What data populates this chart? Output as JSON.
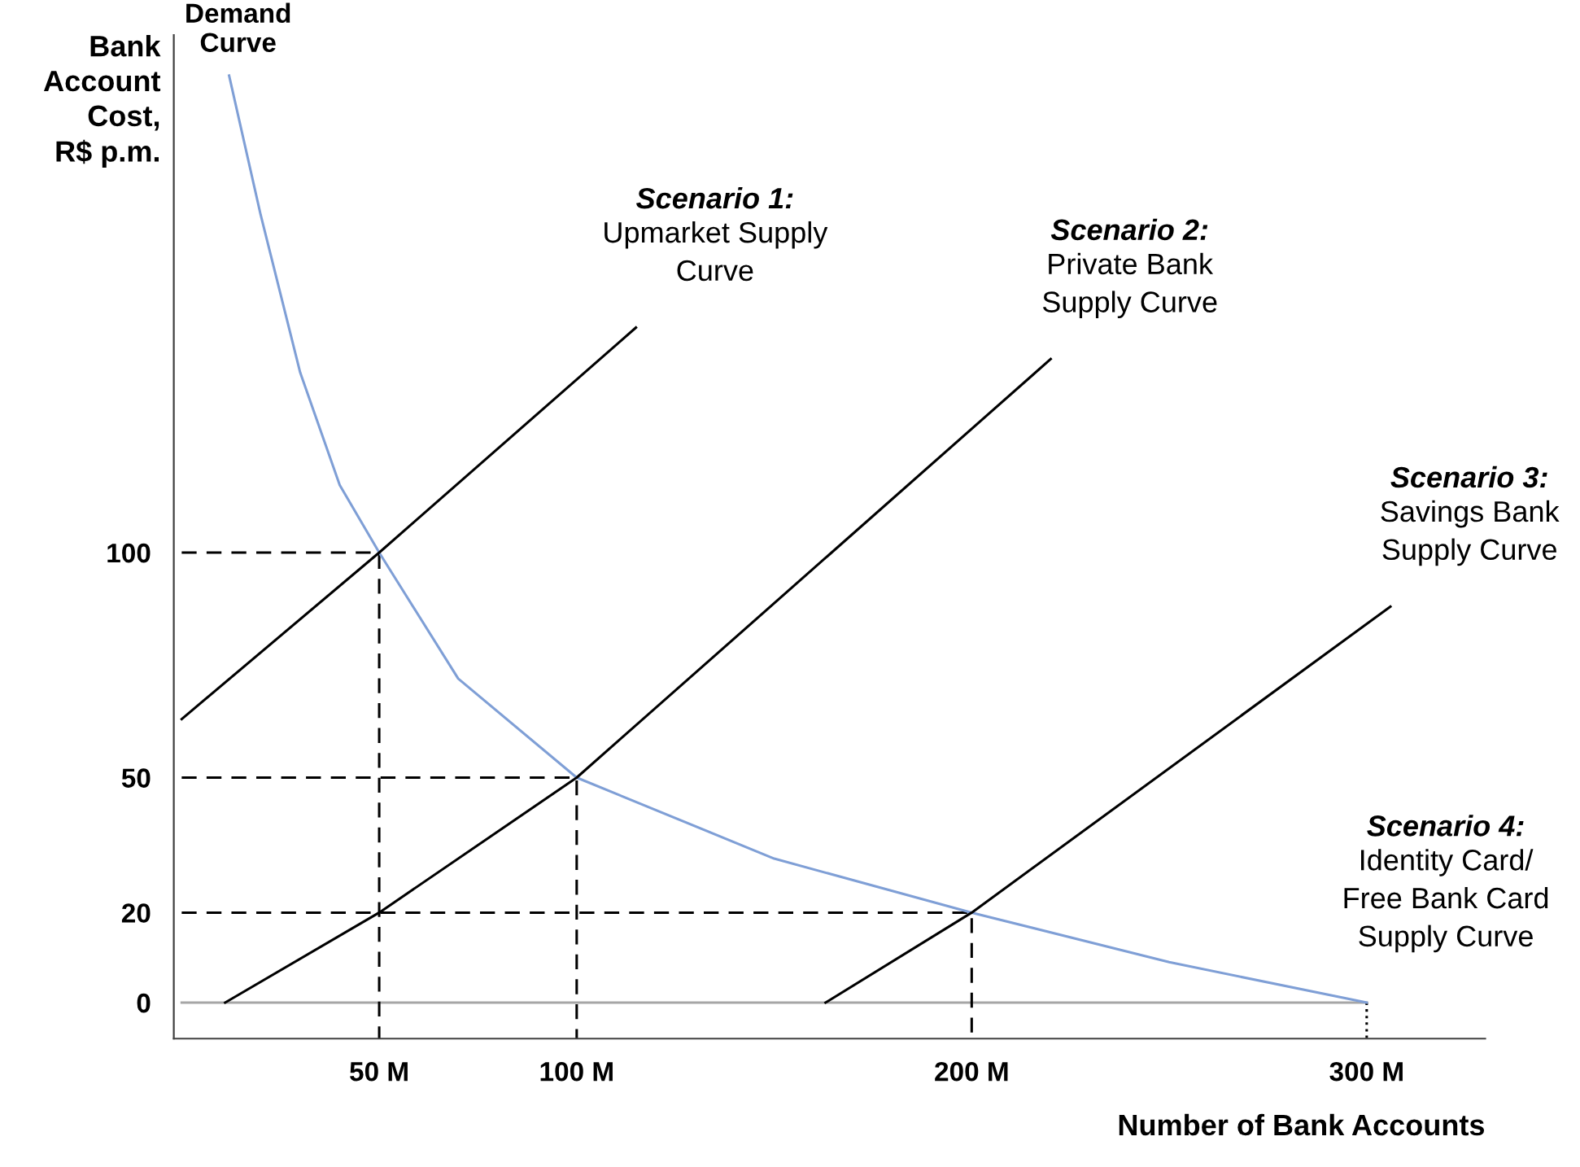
{
  "chart_data": {
    "type": "line",
    "xlabel": "Number of Bank Accounts",
    "ylabel": "Bank\nAccount\nCost,\nR$ p.m.",
    "xlim": [
      -2,
      330
    ],
    "ylim": [
      -8,
      215
    ],
    "xticks": [
      {
        "value": 50,
        "label": "50 M"
      },
      {
        "value": 100,
        "label": "100 M"
      },
      {
        "value": 200,
        "label": "200 M"
      },
      {
        "value": 300,
        "label": "300 M"
      }
    ],
    "yticks": [
      0,
      20,
      50,
      100
    ],
    "grid": false,
    "legend": false,
    "series": [
      {
        "color": "#a6a6a6",
        "line_style": "solid",
        "x": [
          0,
          300
        ],
        "values": [
          0,
          0
        ]
      },
      {
        "color": "#000000",
        "line_style": "dashed",
        "x": [
          0,
          50,
          50
        ],
        "values": [
          100,
          100,
          -8
        ]
      },
      {
        "color": "#000000",
        "line_style": "dashed",
        "x": [
          0,
          100,
          100
        ],
        "values": [
          50,
          50,
          -8
        ]
      },
      {
        "color": "#000000",
        "line_style": "dashed",
        "x": [
          0,
          200,
          200
        ],
        "values": [
          20,
          20,
          -8
        ]
      },
      {
        "color": "#000000",
        "line_style": "dotted",
        "x": [
          300,
          300
        ],
        "values": [
          0,
          -8
        ]
      },
      {
        "color": "#7f9fd6",
        "line_style": "solid",
        "x": [
          12,
          20,
          30,
          40,
          50,
          70,
          100,
          150,
          200,
          250,
          300
        ],
        "values": [
          206,
          175,
          140,
          115,
          100,
          72,
          50,
          32,
          20,
          9,
          0
        ]
      },
      {
        "color": "#000000",
        "line_style": "solid",
        "x": [
          0,
          50,
          115
        ],
        "values": [
          63,
          100,
          150
        ]
      },
      {
        "color": "#000000",
        "line_style": "solid",
        "x": [
          11,
          50,
          100,
          220
        ],
        "values": [
          0,
          20,
          50,
          143
        ]
      },
      {
        "color": "#000000",
        "line_style": "solid",
        "x": [
          163,
          200,
          306
        ],
        "values": [
          0,
          20,
          88
        ]
      }
    ],
    "annotations": [
      {
        "text": "Demand\nCurve",
        "x": 12,
        "y": 206
      },
      {
        "text": "Scenario 1:\nUpmarket Supply\nCurve",
        "x": 115,
        "y": 150
      },
      {
        "text": "Scenario 2:\nPrivate Bank\nSupply Curve",
        "x": 220,
        "y": 143
      },
      {
        "text": "Scenario 3:\nSavings Bank\nSupply Curve",
        "x": 306,
        "y": 88
      },
      {
        "text": "Scenario 4:\nIdentity Card/\nFree Bank Card\nSupply Curve",
        "x": 300,
        "y": 0
      }
    ]
  }
}
